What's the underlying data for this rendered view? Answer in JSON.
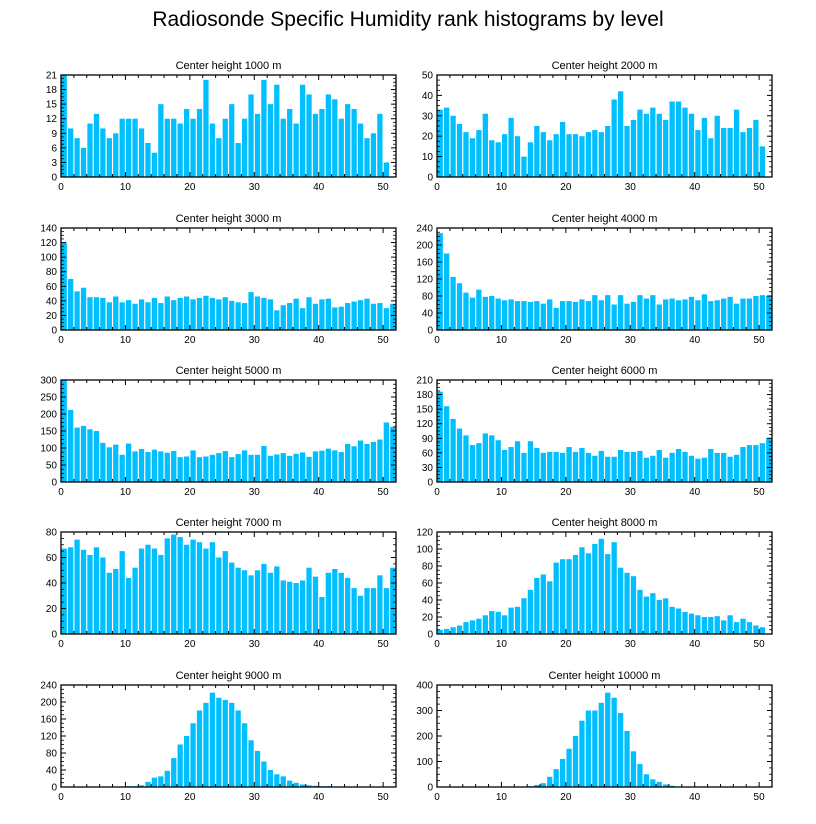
{
  "title": "Radiosonde Specific Humidity rank histograms by level",
  "style": {
    "bar_color": "#00bfff",
    "bar_edge": "#0090d0",
    "axis_color": "#000000"
  },
  "chart_data": [
    {
      "type": "bar",
      "title": "Center height 1000 m",
      "x": [
        0,
        1,
        2,
        3,
        4,
        5,
        6,
        7,
        8,
        9,
        10,
        11,
        12,
        13,
        14,
        15,
        16,
        17,
        18,
        19,
        20,
        21,
        22,
        23,
        24,
        25,
        26,
        27,
        28,
        29,
        30,
        31,
        32,
        33,
        34,
        35,
        36,
        37,
        38,
        39,
        40,
        41,
        42,
        43,
        44,
        45,
        46,
        47,
        48,
        49,
        50,
        51
      ],
      "values": [
        21,
        10,
        8,
        6,
        11,
        13,
        10,
        8,
        9,
        12,
        12,
        12,
        10,
        7,
        5,
        15,
        12,
        12,
        11,
        14,
        12,
        14,
        20,
        11,
        8,
        12,
        15,
        7,
        12,
        17,
        13,
        20,
        15,
        19,
        12,
        14,
        11,
        19,
        17,
        13,
        14,
        17,
        16,
        12,
        15,
        14,
        11,
        8,
        9,
        13,
        3,
        0
      ],
      "xlim": [
        0,
        52
      ],
      "ylim": [
        0,
        21
      ],
      "xticks": [
        0,
        10,
        20,
        30,
        40,
        50
      ],
      "yticks": [
        0,
        3,
        6,
        9,
        12,
        15,
        18,
        21
      ]
    },
    {
      "type": "bar",
      "title": "Center height 2000 m",
      "x": [
        0,
        1,
        2,
        3,
        4,
        5,
        6,
        7,
        8,
        9,
        10,
        11,
        12,
        13,
        14,
        15,
        16,
        17,
        18,
        19,
        20,
        21,
        22,
        23,
        24,
        25,
        26,
        27,
        28,
        29,
        30,
        31,
        32,
        33,
        34,
        35,
        36,
        37,
        38,
        39,
        40,
        41,
        42,
        43,
        44,
        45,
        46,
        47,
        48,
        49,
        50,
        51
      ],
      "values": [
        33,
        34,
        30,
        26,
        22,
        19,
        23,
        31,
        18,
        17,
        21,
        29,
        20,
        10,
        17,
        25,
        22,
        18,
        21,
        27,
        21,
        21,
        20,
        22,
        23,
        22,
        25,
        38,
        42,
        25,
        28,
        33,
        31,
        34,
        31,
        28,
        37,
        37,
        34,
        31,
        23,
        29,
        19,
        30,
        24,
        24,
        33,
        22,
        24,
        28,
        15,
        0
      ],
      "xlim": [
        0,
        52
      ],
      "ylim": [
        0,
        50
      ],
      "xticks": [
        0,
        10,
        20,
        30,
        40,
        50
      ],
      "yticks": [
        0,
        10,
        20,
        30,
        40,
        50
      ]
    },
    {
      "type": "bar",
      "title": "Center height 3000 m",
      "x": [
        0,
        1,
        2,
        3,
        4,
        5,
        6,
        7,
        8,
        9,
        10,
        11,
        12,
        13,
        14,
        15,
        16,
        17,
        18,
        19,
        20,
        21,
        22,
        23,
        24,
        25,
        26,
        27,
        28,
        29,
        30,
        31,
        32,
        33,
        34,
        35,
        36,
        37,
        38,
        39,
        40,
        41,
        42,
        43,
        44,
        45,
        46,
        47,
        48,
        49,
        50,
        51
      ],
      "values": [
        120,
        70,
        53,
        58,
        45,
        45,
        44,
        38,
        46,
        38,
        41,
        36,
        42,
        38,
        44,
        37,
        46,
        41,
        44,
        46,
        42,
        44,
        47,
        44,
        42,
        45,
        40,
        38,
        37,
        52,
        46,
        44,
        42,
        27,
        34,
        37,
        43,
        30,
        45,
        36,
        42,
        43,
        31,
        32,
        37,
        39,
        41,
        43,
        36,
        37,
        30,
        36
      ],
      "xlim": [
        0,
        52
      ],
      "ylim": [
        0,
        140
      ],
      "xticks": [
        0,
        10,
        20,
        30,
        40,
        50
      ],
      "yticks": [
        0,
        20,
        40,
        60,
        80,
        100,
        120,
        140
      ]
    },
    {
      "type": "bar",
      "title": "Center height 4000 m",
      "x": [
        0,
        1,
        2,
        3,
        4,
        5,
        6,
        7,
        8,
        9,
        10,
        11,
        12,
        13,
        14,
        15,
        16,
        17,
        18,
        19,
        20,
        21,
        22,
        23,
        24,
        25,
        26,
        27,
        28,
        29,
        30,
        31,
        32,
        33,
        34,
        35,
        36,
        37,
        38,
        39,
        40,
        41,
        42,
        43,
        44,
        45,
        46,
        47,
        48,
        49,
        50,
        51
      ],
      "values": [
        228,
        180,
        125,
        110,
        88,
        76,
        95,
        78,
        80,
        74,
        70,
        72,
        68,
        68,
        66,
        68,
        62,
        72,
        52,
        68,
        68,
        66,
        72,
        68,
        82,
        70,
        82,
        60,
        82,
        62,
        66,
        82,
        74,
        82,
        60,
        72,
        74,
        70,
        72,
        78,
        70,
        84,
        68,
        70,
        74,
        78,
        62,
        74,
        74,
        80,
        82,
        80
      ],
      "xlim": [
        0,
        52
      ],
      "ylim": [
        0,
        240
      ],
      "xticks": [
        0,
        10,
        20,
        30,
        40,
        50
      ],
      "yticks": [
        0,
        40,
        80,
        120,
        160,
        200,
        240
      ]
    },
    {
      "type": "bar",
      "title": "Center height 5000 m",
      "x": [
        0,
        1,
        2,
        3,
        4,
        5,
        6,
        7,
        8,
        9,
        10,
        11,
        12,
        13,
        14,
        15,
        16,
        17,
        18,
        19,
        20,
        21,
        22,
        23,
        24,
        25,
        26,
        27,
        28,
        29,
        30,
        31,
        32,
        33,
        34,
        35,
        36,
        37,
        38,
        39,
        40,
        41,
        42,
        43,
        44,
        45,
        46,
        47,
        48,
        49,
        50,
        51
      ],
      "values": [
        300,
        212,
        160,
        165,
        155,
        150,
        115,
        102,
        110,
        80,
        113,
        90,
        97,
        88,
        95,
        90,
        86,
        91,
        73,
        75,
        93,
        73,
        75,
        80,
        85,
        91,
        73,
        82,
        93,
        80,
        80,
        106,
        77,
        81,
        85,
        77,
        83,
        87,
        74,
        90,
        92,
        98,
        93,
        88,
        112,
        105,
        122,
        112,
        118,
        125,
        175,
        162
      ],
      "xlim": [
        0,
        52
      ],
      "ylim": [
        0,
        300
      ],
      "xticks": [
        0,
        10,
        20,
        30,
        40,
        50
      ],
      "yticks": [
        0,
        50,
        100,
        150,
        200,
        250,
        300
      ]
    },
    {
      "type": "bar",
      "title": "Center height 6000 m",
      "x": [
        0,
        1,
        2,
        3,
        4,
        5,
        6,
        7,
        8,
        9,
        10,
        11,
        12,
        13,
        14,
        15,
        16,
        17,
        18,
        19,
        20,
        21,
        22,
        23,
        24,
        25,
        26,
        27,
        28,
        29,
        30,
        31,
        32,
        33,
        34,
        35,
        36,
        37,
        38,
        39,
        40,
        41,
        42,
        43,
        44,
        45,
        46,
        47,
        48,
        49,
        50,
        51
      ],
      "values": [
        186,
        156,
        130,
        110,
        96,
        76,
        80,
        100,
        96,
        86,
        66,
        72,
        84,
        60,
        84,
        70,
        60,
        62,
        62,
        60,
        72,
        62,
        70,
        60,
        54,
        64,
        52,
        52,
        66,
        62,
        62,
        64,
        50,
        54,
        66,
        50,
        60,
        68,
        62,
        54,
        48,
        50,
        68,
        60,
        60,
        52,
        56,
        72,
        76,
        76,
        80,
        90
      ],
      "xlim": [
        0,
        52
      ],
      "ylim": [
        0,
        210
      ],
      "xticks": [
        0,
        10,
        20,
        30,
        40,
        50
      ],
      "yticks": [
        0,
        30,
        60,
        90,
        120,
        150,
        180,
        210
      ]
    },
    {
      "type": "bar",
      "title": "Center height 7000 m",
      "x": [
        0,
        1,
        2,
        3,
        4,
        5,
        6,
        7,
        8,
        9,
        10,
        11,
        12,
        13,
        14,
        15,
        16,
        17,
        18,
        19,
        20,
        21,
        22,
        23,
        24,
        25,
        26,
        27,
        28,
        29,
        30,
        31,
        32,
        33,
        34,
        35,
        36,
        37,
        38,
        39,
        40,
        41,
        42,
        43,
        44,
        45,
        46,
        47,
        48,
        49,
        50,
        51
      ],
      "values": [
        67,
        68,
        74,
        66,
        62,
        68,
        60,
        48,
        51,
        65,
        44,
        52,
        67,
        70,
        67,
        62,
        75,
        78,
        76,
        70,
        74,
        72,
        67,
        72,
        60,
        65,
        56,
        52,
        50,
        46,
        50,
        55,
        48,
        53,
        42,
        41,
        40,
        42,
        52,
        45,
        29,
        48,
        51,
        48,
        44,
        36,
        30,
        36,
        36,
        46,
        36,
        52
      ],
      "xlim": [
        0,
        52
      ],
      "ylim": [
        0,
        80
      ],
      "xticks": [
        0,
        10,
        20,
        30,
        40,
        50
      ],
      "yticks": [
        0,
        20,
        40,
        60,
        80
      ]
    },
    {
      "type": "bar",
      "title": "Center height 8000 m",
      "x": [
        0,
        1,
        2,
        3,
        4,
        5,
        6,
        7,
        8,
        9,
        10,
        11,
        12,
        13,
        14,
        15,
        16,
        17,
        18,
        19,
        20,
        21,
        22,
        23,
        24,
        25,
        26,
        27,
        28,
        29,
        30,
        31,
        32,
        33,
        34,
        35,
        36,
        37,
        38,
        39,
        40,
        41,
        42,
        43,
        44,
        45,
        46,
        47,
        48,
        49,
        50,
        51
      ],
      "values": [
        5,
        6,
        8,
        10,
        14,
        16,
        18,
        22,
        27,
        26,
        22,
        31,
        32,
        42,
        52,
        66,
        70,
        62,
        84,
        88,
        88,
        93,
        102,
        95,
        106,
        112,
        94,
        108,
        78,
        72,
        68,
        52,
        44,
        48,
        40,
        42,
        32,
        30,
        26,
        24,
        22,
        20,
        20,
        21,
        16,
        22,
        14,
        18,
        14,
        10,
        8,
        0
      ],
      "xlim": [
        0,
        52
      ],
      "ylim": [
        0,
        120
      ],
      "xticks": [
        0,
        10,
        20,
        30,
        40,
        50
      ],
      "yticks": [
        0,
        20,
        40,
        60,
        80,
        100,
        120
      ]
    },
    {
      "type": "bar",
      "title": "Center height 9000 m",
      "x": [
        0,
        1,
        2,
        3,
        4,
        5,
        6,
        7,
        8,
        9,
        10,
        11,
        12,
        13,
        14,
        15,
        16,
        17,
        18,
        19,
        20,
        21,
        22,
        23,
        24,
        25,
        26,
        27,
        28,
        29,
        30,
        31,
        32,
        33,
        34,
        35,
        36,
        37,
        38,
        39,
        40,
        41,
        42,
        43,
        44,
        45,
        46,
        47,
        48,
        49,
        50,
        51
      ],
      "values": [
        0,
        0,
        0,
        0,
        0,
        0,
        0,
        0,
        0,
        0,
        2,
        2,
        4,
        12,
        22,
        25,
        38,
        68,
        100,
        120,
        150,
        180,
        198,
        222,
        210,
        205,
        198,
        180,
        150,
        110,
        85,
        60,
        40,
        30,
        25,
        15,
        10,
        6,
        4,
        3,
        2,
        2,
        1,
        0,
        1,
        0,
        0,
        0,
        0,
        0,
        0,
        0
      ],
      "xlim": [
        0,
        52
      ],
      "ylim": [
        0,
        240
      ],
      "xticks": [
        0,
        10,
        20,
        30,
        40,
        50
      ],
      "yticks": [
        0,
        40,
        80,
        120,
        160,
        200,
        240
      ]
    },
    {
      "type": "bar",
      "title": "Center height 10000 m",
      "x": [
        0,
        1,
        2,
        3,
        4,
        5,
        6,
        7,
        8,
        9,
        10,
        11,
        12,
        13,
        14,
        15,
        16,
        17,
        18,
        19,
        20,
        21,
        22,
        23,
        24,
        25,
        26,
        27,
        28,
        29,
        30,
        31,
        32,
        33,
        34,
        35,
        36,
        37,
        38,
        39,
        40,
        41,
        42,
        43,
        44,
        45,
        46,
        47,
        48,
        49,
        50,
        51
      ],
      "values": [
        0,
        0,
        0,
        0,
        0,
        0,
        0,
        0,
        0,
        0,
        0,
        0,
        0,
        2,
        3,
        8,
        15,
        40,
        70,
        110,
        150,
        200,
        260,
        300,
        300,
        330,
        370,
        350,
        290,
        220,
        140,
        90,
        50,
        30,
        20,
        10,
        5,
        2,
        1,
        0,
        0,
        0,
        0,
        0,
        0,
        0,
        0,
        0,
        0,
        0,
        0,
        0
      ],
      "xlim": [
        0,
        52
      ],
      "ylim": [
        0,
        400
      ],
      "xticks": [
        0,
        10,
        20,
        30,
        40,
        50
      ],
      "yticks": [
        0,
        100,
        200,
        300,
        400
      ]
    }
  ]
}
